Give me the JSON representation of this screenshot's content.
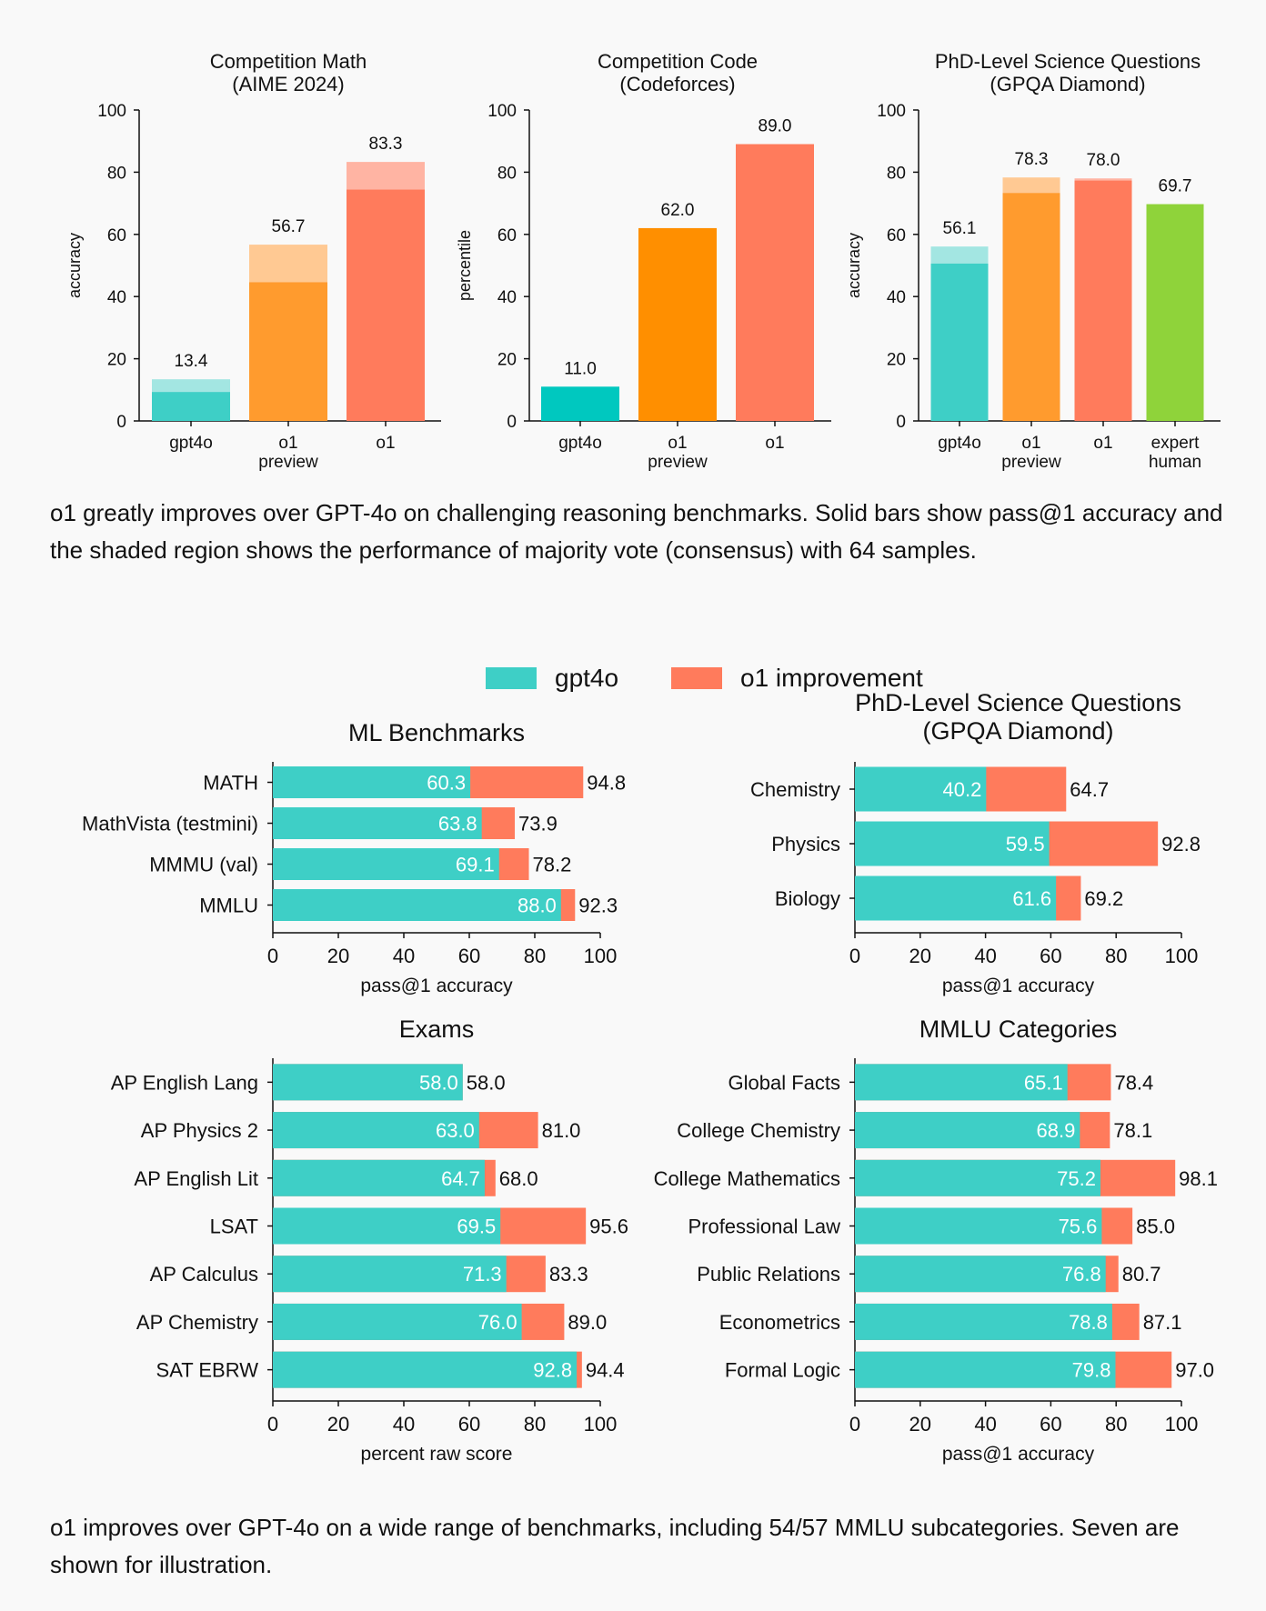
{
  "colors": {
    "teal": "#3ecfc6",
    "teal_light": "#a3e6e2",
    "teal_strong": "#00c8bf",
    "orange": "#ff9b2e",
    "orange_light": "#ffc993",
    "orange_strong": "#ff8f00",
    "salmon": "#ff7b5c",
    "salmon_light": "#ffb4a3",
    "green": "#8fd33a",
    "axis": "#111111"
  },
  "chart_data": [
    {
      "id": "aime",
      "type": "bar",
      "title": [
        "Competition Math",
        "(AIME 2024)"
      ],
      "ylabel": "accuracy",
      "ylim": [
        0,
        100
      ],
      "yticks": [
        0,
        20,
        40,
        60,
        80,
        100
      ],
      "categories": [
        [
          "gpt4o"
        ],
        [
          "o1",
          "preview"
        ],
        [
          "o1"
        ]
      ],
      "series": [
        {
          "name": "pass@1",
          "values": [
            9.3,
            44.6,
            74.4
          ]
        },
        {
          "name": "consensus@64",
          "values": [
            13.4,
            56.7,
            83.3
          ]
        }
      ],
      "labels": [
        "13.4",
        "56.7",
        "83.3"
      ],
      "solid_colors": [
        "#3ecfc6",
        "#ff9b2e",
        "#ff7b5c"
      ],
      "shade_colors": [
        "#a3e6e2",
        "#ffc993",
        "#ffb4a3"
      ]
    },
    {
      "id": "codeforces",
      "type": "bar",
      "title": [
        "Competition Code",
        "(Codeforces)"
      ],
      "ylabel": "percentile",
      "ylim": [
        0,
        100
      ],
      "yticks": [
        0,
        20,
        40,
        60,
        80,
        100
      ],
      "categories": [
        [
          "gpt4o"
        ],
        [
          "o1",
          "preview"
        ],
        [
          "o1"
        ]
      ],
      "series": [
        {
          "name": "pass@1",
          "values": [
            11.0,
            62.0,
            89.0
          ]
        }
      ],
      "labels": [
        "11.0",
        "62.0",
        "89.0"
      ],
      "solid_colors": [
        "#00c8bf",
        "#ff8f00",
        "#ff7b5c"
      ],
      "shade_colors": [
        "#00c8bf",
        "#ff8f00",
        "#ff7b5c"
      ]
    },
    {
      "id": "gpqa",
      "type": "bar",
      "title": [
        "PhD-Level Science Questions",
        "(GPQA Diamond)"
      ],
      "ylabel": "accuracy",
      "ylim": [
        0,
        100
      ],
      "yticks": [
        0,
        20,
        40,
        60,
        80,
        100
      ],
      "categories": [
        [
          "gpt4o"
        ],
        [
          "o1",
          "preview"
        ],
        [
          "o1"
        ],
        [
          "expert",
          "human"
        ]
      ],
      "series": [
        {
          "name": "pass@1",
          "values": [
            50.6,
            73.3,
            77.3,
            69.7
          ]
        },
        {
          "name": "consensus@64",
          "values": [
            56.1,
            78.3,
            78.0,
            69.7
          ]
        }
      ],
      "labels": [
        "56.1",
        "78.3",
        "78.0",
        "69.7"
      ],
      "solid_colors": [
        "#3ecfc6",
        "#ff9b2e",
        "#ff7b5c",
        "#8fd33a"
      ],
      "shade_colors": [
        "#a3e6e2",
        "#ffc993",
        "#ffb4a3",
        "#8fd33a"
      ]
    },
    {
      "id": "ml",
      "type": "bar",
      "orientation": "horizontal",
      "title": [
        "ML Benchmarks"
      ],
      "xlabel": "pass@1 accuracy",
      "xlim": [
        0,
        100
      ],
      "xticks": [
        0,
        20,
        40,
        60,
        80,
        100
      ],
      "categories": [
        "MATH",
        "MathVista (testmini)",
        "MMMU (val)",
        "MMLU"
      ],
      "series": [
        {
          "name": "gpt4o",
          "values": [
            60.3,
            63.8,
            69.1,
            88.0
          ]
        },
        {
          "name": "o1 improvement",
          "values": [
            94.8,
            73.9,
            78.2,
            92.3
          ]
        }
      ]
    },
    {
      "id": "gpqa_sub",
      "type": "bar",
      "orientation": "horizontal",
      "title": [
        "PhD-Level Science Questions",
        "(GPQA Diamond)"
      ],
      "xlabel": "pass@1 accuracy",
      "xlim": [
        0,
        100
      ],
      "xticks": [
        0,
        20,
        40,
        60,
        80,
        100
      ],
      "categories": [
        "Chemistry",
        "Physics",
        "Biology"
      ],
      "series": [
        {
          "name": "gpt4o",
          "values": [
            40.2,
            59.5,
            61.6
          ]
        },
        {
          "name": "o1 improvement",
          "values": [
            64.7,
            92.8,
            69.2
          ]
        }
      ]
    },
    {
      "id": "exams",
      "type": "bar",
      "orientation": "horizontal",
      "title": [
        "Exams"
      ],
      "xlabel": "percent raw score",
      "xlim": [
        0,
        100
      ],
      "xticks": [
        0,
        20,
        40,
        60,
        80,
        100
      ],
      "categories": [
        "AP English Lang",
        "AP Physics 2",
        "AP English Lit",
        "LSAT",
        "AP Calculus",
        "AP Chemistry",
        "SAT EBRW"
      ],
      "series": [
        {
          "name": "gpt4o",
          "values": [
            58.0,
            63.0,
            64.7,
            69.5,
            71.3,
            76.0,
            92.8
          ]
        },
        {
          "name": "o1 improvement",
          "values": [
            58.0,
            81.0,
            68.0,
            95.6,
            83.3,
            89.0,
            94.4
          ]
        }
      ]
    },
    {
      "id": "mmlu",
      "type": "bar",
      "orientation": "horizontal",
      "title": [
        "MMLU Categories"
      ],
      "xlabel": "pass@1 accuracy",
      "xlim": [
        0,
        100
      ],
      "xticks": [
        0,
        20,
        40,
        60,
        80,
        100
      ],
      "categories": [
        "Global Facts",
        "College Chemistry",
        "College Mathematics",
        "Professional Law",
        "Public Relations",
        "Econometrics",
        "Formal Logic"
      ],
      "series": [
        {
          "name": "gpt4o",
          "values": [
            65.1,
            68.9,
            75.2,
            75.6,
            76.8,
            78.8,
            79.8
          ]
        },
        {
          "name": "o1 improvement",
          "values": [
            78.4,
            78.1,
            98.1,
            85.0,
            80.7,
            87.1,
            97.0
          ]
        }
      ]
    }
  ],
  "legend": {
    "gpt4o": "gpt4o",
    "o1": "o1 improvement"
  },
  "captions": {
    "top": "o1 greatly improves over GPT-4o on challenging reasoning benchmarks. Solid bars show pass@1 accuracy and the shaded region shows the performance of majority vote (consensus) with 64 samples.",
    "bottom": "o1 improves over GPT-4o on a wide range of benchmarks, including 54/57 MMLU subcategories. Seven are shown for illustration."
  }
}
